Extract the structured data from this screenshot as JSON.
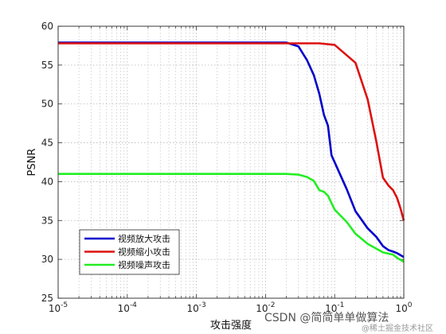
{
  "chart_data": {
    "type": "line",
    "x_scale": "log",
    "xlim": [
      1e-05,
      1
    ],
    "ylim": [
      25,
      60
    ],
    "x_ticks": [
      1e-05,
      0.0001,
      0.001,
      0.01,
      0.1,
      1
    ],
    "x_tick_labels": [
      {
        "base": "10",
        "exp": "-5"
      },
      {
        "base": "10",
        "exp": "-4"
      },
      {
        "base": "10",
        "exp": "-3"
      },
      {
        "base": "10",
        "exp": "-2"
      },
      {
        "base": "10",
        "exp": "-1"
      },
      {
        "base": "10",
        "exp": "0"
      }
    ],
    "y_ticks": [
      25,
      30,
      35,
      40,
      45,
      50,
      55,
      60
    ],
    "y_tick_labels": [
      "25",
      "30",
      "35",
      "40",
      "45",
      "50",
      "55",
      "60"
    ],
    "xlabel": "攻击强度",
    "ylabel": "PSNR",
    "grid": true,
    "legend_position": "bottom-left",
    "series": [
      {
        "name": "视频放大攻击",
        "color": "#0000cc",
        "points": [
          {
            "x": 1e-05,
            "y": 57.9
          },
          {
            "x": 0.02,
            "y": 57.9
          },
          {
            "x": 0.03,
            "y": 57.4
          },
          {
            "x": 0.04,
            "y": 55.6
          },
          {
            "x": 0.05,
            "y": 53.7
          },
          {
            "x": 0.06,
            "y": 51.3
          },
          {
            "x": 0.07,
            "y": 48.6
          },
          {
            "x": 0.08,
            "y": 47.2
          },
          {
            "x": 0.09,
            "y": 43.4
          },
          {
            "x": 0.15,
            "y": 39.0
          },
          {
            "x": 0.2,
            "y": 36.2
          },
          {
            "x": 0.3,
            "y": 34.0
          },
          {
            "x": 0.4,
            "y": 32.9
          },
          {
            "x": 0.5,
            "y": 31.7
          },
          {
            "x": 0.6,
            "y": 31.2
          },
          {
            "x": 0.7,
            "y": 31.0
          },
          {
            "x": 0.8,
            "y": 30.8
          },
          {
            "x": 1,
            "y": 30.3
          }
        ]
      },
      {
        "name": "视频缩小攻击",
        "color": "#dd1111",
        "points": [
          {
            "x": 1e-05,
            "y": 57.8
          },
          {
            "x": 0.03,
            "y": 57.8
          },
          {
            "x": 0.06,
            "y": 57.8
          },
          {
            "x": 0.1,
            "y": 57.6
          },
          {
            "x": 0.2,
            "y": 55.3
          },
          {
            "x": 0.3,
            "y": 50.6
          },
          {
            "x": 0.4,
            "y": 45.2
          },
          {
            "x": 0.5,
            "y": 40.5
          },
          {
            "x": 0.6,
            "y": 39.5
          },
          {
            "x": 0.7,
            "y": 38.9
          },
          {
            "x": 0.8,
            "y": 37.9
          },
          {
            "x": 0.9,
            "y": 36.5
          },
          {
            "x": 1,
            "y": 35.0
          }
        ]
      },
      {
        "name": "视频噪声攻击",
        "color": "#22ee22",
        "points": [
          {
            "x": 1e-05,
            "y": 41.0
          },
          {
            "x": 0.02,
            "y": 41.0
          },
          {
            "x": 0.03,
            "y": 40.9
          },
          {
            "x": 0.04,
            "y": 40.6
          },
          {
            "x": 0.05,
            "y": 40.1
          },
          {
            "x": 0.06,
            "y": 38.9
          },
          {
            "x": 0.07,
            "y": 38.7
          },
          {
            "x": 0.08,
            "y": 38.2
          },
          {
            "x": 0.1,
            "y": 36.4
          },
          {
            "x": 0.15,
            "y": 34.8
          },
          {
            "x": 0.2,
            "y": 33.3
          },
          {
            "x": 0.3,
            "y": 32.0
          },
          {
            "x": 0.5,
            "y": 30.9
          },
          {
            "x": 0.7,
            "y": 30.6
          },
          {
            "x": 0.8,
            "y": 30.2
          },
          {
            "x": 1,
            "y": 29.7
          }
        ]
      }
    ]
  },
  "watermark": {
    "text": "CSDN @简简单单做算法",
    "subtext": "@稀土掘金技术社区"
  }
}
